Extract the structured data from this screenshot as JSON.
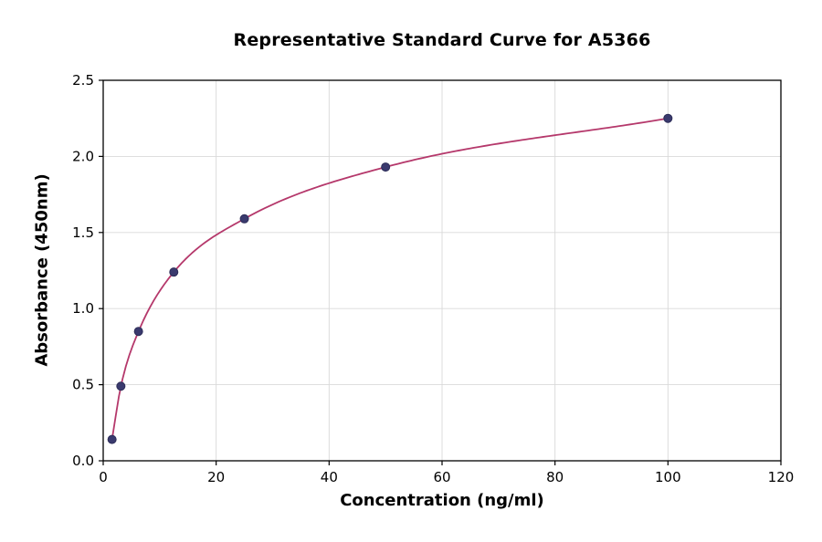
{
  "chart_data": {
    "type": "line",
    "title": "Representative Standard Curve for A5366",
    "xlabel": "Concentration (ng/ml)",
    "ylabel": "Absorbance (450nm)",
    "x": [
      1.56,
      3.13,
      6.25,
      12.5,
      25,
      50,
      100
    ],
    "y": [
      0.14,
      0.49,
      0.85,
      1.24,
      1.59,
      1.93,
      2.25
    ],
    "xlim": [
      0,
      120
    ],
    "ylim": [
      0.0,
      2.5
    ],
    "xticks": [
      0,
      20,
      40,
      60,
      80,
      100,
      120
    ],
    "yticks": [
      0.0,
      0.5,
      1.0,
      1.5,
      2.0,
      2.5
    ],
    "grid": true,
    "legend": "none",
    "line_color": "#b5386b",
    "marker_color": "#3a3a6e",
    "marker_edge_color": "#2d2d58",
    "grid_color": "#d9d9d9",
    "spine_color": "#000000"
  }
}
